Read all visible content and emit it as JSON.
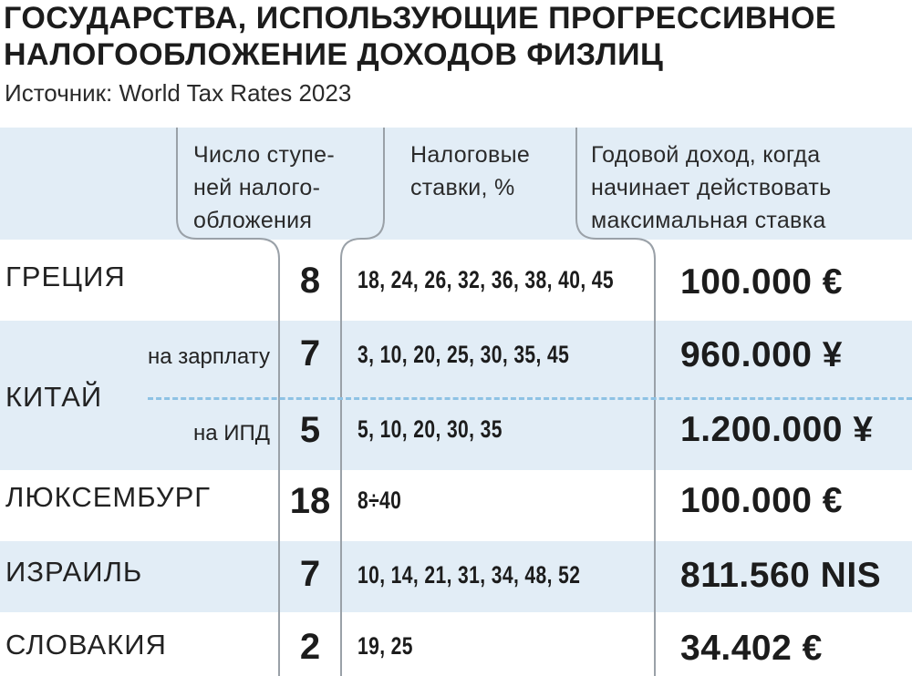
{
  "header": {
    "title_line1": "ГОСУДАРСТВА, ИСПОЛЬЗУЮЩИЕ ПРОГРЕССИВНОЕ",
    "title_line2": "НАЛОГООБЛОЖЕНИЕ ДОХОДОВ ФИЗЛИЦ",
    "source": "Источник: World Tax Rates 2023"
  },
  "columns": {
    "steps": [
      "Число ступе-",
      "ней налого-",
      "обложения"
    ],
    "rates": [
      "Налоговые",
      "ставки, %"
    ],
    "income": [
      "Годовой доход, когда",
      "начинает действовать",
      "максимальная ставка"
    ]
  },
  "rows": [
    {
      "country": "ГРЕЦИЯ",
      "steps": "8",
      "rates": "18, 24, 26, 32, 36, 38, 40, 45",
      "income": "100.000 €"
    },
    {
      "country": "КИТАЙ",
      "sub": "на зарплату",
      "steps": "7",
      "rates": "3, 10, 20, 25, 30, 35, 45",
      "income": "960.000 ¥"
    },
    {
      "sub": "на ИПД",
      "steps": "5",
      "rates": "5, 10, 20, 30, 35",
      "income": "1.200.000 ¥"
    },
    {
      "country": "ЛЮКСЕМБУРГ",
      "steps": "18",
      "rates": "8÷40",
      "income": "100.000 €"
    },
    {
      "country": "ИЗРАИЛЬ",
      "steps": "7",
      "rates": "10, 14, 21, 31, 34, 48, 52",
      "income": "811.560 NIS"
    },
    {
      "country": "СЛОВАКИЯ",
      "steps": "2",
      "rates": "19, 25",
      "income": "34.402 €"
    }
  ],
  "colors": {
    "band": "#e2edf6",
    "divider": "#9aa1a8",
    "dashed": "#8ec2e4",
    "text": "#1c1c1c"
  }
}
